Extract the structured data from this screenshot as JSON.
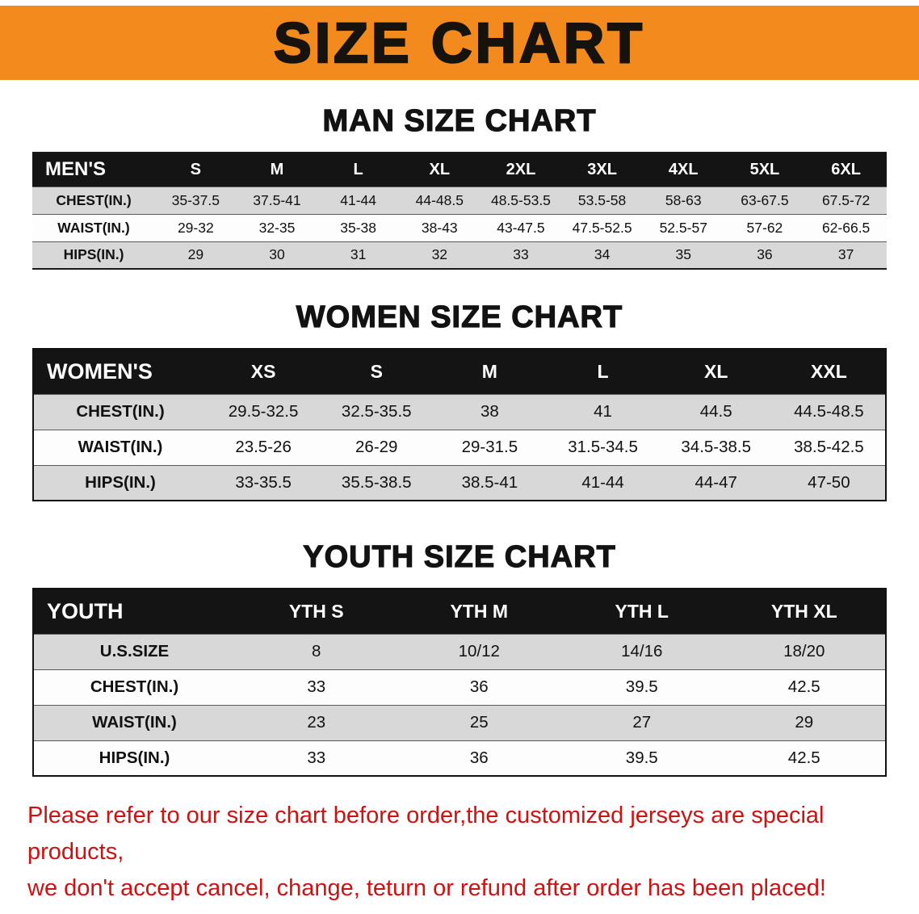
{
  "banner": {
    "title": "SIZE CHART"
  },
  "sections": [
    {
      "heading": "MAN SIZE CHART",
      "table": {
        "header": [
          "MEN'S",
          "S",
          "M",
          "L",
          "XL",
          "2XL",
          "3XL",
          "4XL",
          "5XL",
          "6XL"
        ],
        "rows": [
          [
            "CHEST(IN.)",
            "35-37.5",
            "37.5-41",
            "41-44",
            "44-48.5",
            "48.5-53.5",
            "53.5-58",
            "58-63",
            "63-67.5",
            "67.5-72"
          ],
          [
            "WAIST(IN.)",
            "29-32",
            "32-35",
            "35-38",
            "38-43",
            "43-47.5",
            "47.5-52.5",
            "52.5-57",
            "57-62",
            "62-66.5"
          ],
          [
            "HIPS(IN.)",
            "29",
            "30",
            "31",
            "32",
            "33",
            "34",
            "35",
            "36",
            "37"
          ]
        ]
      }
    },
    {
      "heading": "WOMEN SIZE CHART",
      "table": {
        "header": [
          "WOMEN'S",
          "XS",
          "S",
          "M",
          "L",
          "XL",
          "XXL"
        ],
        "rows": [
          [
            "CHEST(IN.)",
            "29.5-32.5",
            "32.5-35.5",
            "38",
            "41",
            "44.5",
            "44.5-48.5"
          ],
          [
            "WAIST(IN.)",
            "23.5-26",
            "26-29",
            "29-31.5",
            "31.5-34.5",
            "34.5-38.5",
            "38.5-42.5"
          ],
          [
            "HIPS(IN.)",
            "33-35.5",
            "35.5-38.5",
            "38.5-41",
            "41-44",
            "44-47",
            "47-50"
          ]
        ]
      }
    },
    {
      "heading": "YOUTH SIZE CHART",
      "table": {
        "header": [
          "YOUTH",
          "YTH S",
          "YTH M",
          "YTH L",
          "YTH XL"
        ],
        "rows": [
          [
            "U.S.SIZE",
            "8",
            "10/12",
            "14/16",
            "18/20"
          ],
          [
            "CHEST(IN.)",
            "33",
            "36",
            "39.5",
            "42.5"
          ],
          [
            "WAIST(IN.)",
            "23",
            "25",
            "27",
            "29"
          ],
          [
            "HIPS(IN.)",
            "33",
            "36",
            "39.5",
            "42.5"
          ]
        ]
      }
    }
  ],
  "notice": {
    "line1": "Please refer to our size chart before order,the customized jerseys are special products,",
    "line2": "we don't accept cancel, change, teturn or refund after order has been placed!"
  },
  "colors": {
    "banner_bg": "#f28a1e",
    "banner_text": "#16120e",
    "table_header_bg": "#141414",
    "table_header_text": "#ffffff",
    "row_stripe": "#d8d8d8",
    "notice_text": "#cf1110"
  }
}
